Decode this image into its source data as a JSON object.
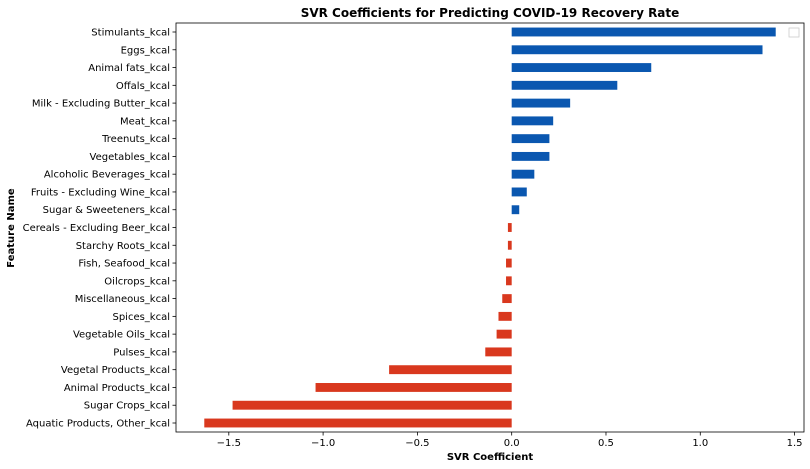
{
  "chart_data": {
    "type": "bar",
    "orientation": "horizontal",
    "title": "SVR Coefficients for Predicting COVID-19 Recovery Rate",
    "xlabel": "SVR Coefficient",
    "ylabel": "Feature Name",
    "xlim": [
      -1.78,
      1.55
    ],
    "xticks": [
      -1.5,
      -1.0,
      -0.5,
      0.0,
      0.5,
      1.0,
      1.5
    ],
    "xtick_labels": [
      "−1.5",
      "−1.0",
      "−0.5",
      "0.0",
      "0.5",
      "1.0",
      "1.5"
    ],
    "grid": false,
    "legend": {
      "location": "top-right",
      "entries": []
    },
    "colors": {
      "positive": "#0a57b0",
      "negative": "#d9381e"
    },
    "categories": [
      "Stimulants_kcal",
      "Eggs_kcal",
      "Animal fats_kcal",
      "Offals_kcal",
      "Milk - Excluding Butter_kcal",
      "Meat_kcal",
      "Treenuts_kcal",
      "Vegetables_kcal",
      "Alcoholic Beverages_kcal",
      "Fruits - Excluding Wine_kcal",
      "Sugar & Sweeteners_kcal",
      "Cereals - Excluding Beer_kcal",
      "Starchy Roots_kcal",
      "Fish, Seafood_kcal",
      "Oilcrops_kcal",
      "Miscellaneous_kcal",
      "Spices_kcal",
      "Vegetable Oils_kcal",
      "Pulses_kcal",
      "Vegetal Products_kcal",
      "Animal Products_kcal",
      "Sugar Crops_kcal",
      "Aquatic Products, Other_kcal"
    ],
    "values": [
      1.4,
      1.33,
      0.74,
      0.56,
      0.31,
      0.22,
      0.2,
      0.2,
      0.12,
      0.08,
      0.04,
      -0.02,
      -0.02,
      -0.03,
      -0.03,
      -0.05,
      -0.07,
      -0.08,
      -0.14,
      -0.65,
      -1.04,
      -1.48,
      -1.63
    ]
  }
}
